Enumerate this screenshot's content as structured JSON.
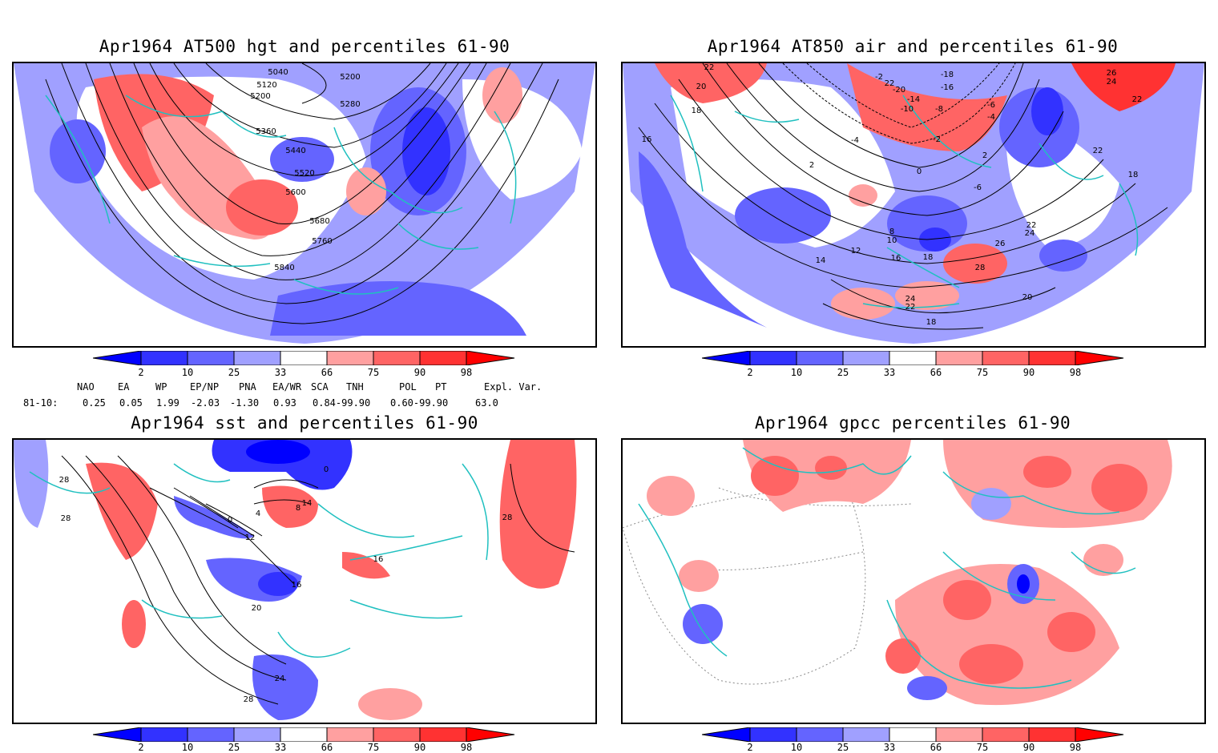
{
  "panels": [
    {
      "title": "Apr1964 AT500 hgt and percentiles 61-90",
      "contour_labels": [
        "5040",
        "5120",
        "5200",
        "5200",
        "5280",
        "5360",
        "5440",
        "5520",
        "5600",
        "5680",
        "5760",
        "5840"
      ]
    },
    {
      "title": "Apr1964 AT850 air and percentiles 61-90",
      "contour_labels": [
        "22",
        "20",
        "18",
        "16",
        "-2",
        "-18",
        "-16",
        "22",
        "-20",
        "-14",
        "-10",
        "-8",
        "-6",
        "-4",
        "-4",
        "-2",
        "0",
        "2",
        "2",
        "-6",
        "26",
        "24",
        "22",
        "22",
        "18",
        "28",
        "26",
        "24",
        "22",
        "20",
        "18",
        "16",
        "14",
        "12",
        "10",
        "8",
        "24",
        "22",
        "18"
      ]
    },
    {
      "title": "Apr1964 sst and percentiles 61-90",
      "contour_labels": [
        "28",
        "28",
        "0",
        "4",
        "8",
        "14",
        "0",
        "12",
        "16",
        "16",
        "20",
        "24",
        "28",
        "28"
      ]
    },
    {
      "title": "Apr1964 gpcc percentiles 61-90",
      "contour_labels": []
    }
  ],
  "colorbar": {
    "labels": [
      "2",
      "10",
      "25",
      "33",
      "66",
      "75",
      "90",
      "98"
    ],
    "colors": {
      "below2": "#0000ff",
      "c2_10": "#3232ff",
      "c10_25": "#6464ff",
      "c25_33": "#a0a0ff",
      "c66_75": "#ffa0a0",
      "c75_90": "#ff6464",
      "c90_98": "#ff3232",
      "above98": "#ff0000"
    }
  },
  "indices": {
    "headers": [
      "NAO",
      "EA",
      "WP",
      "EP/NP",
      "PNA",
      "EA/WR",
      "SCA",
      "TNH",
      "POL",
      "PT",
      "Expl. Var."
    ],
    "row_label": "81-10:",
    "values": [
      "0.25",
      "0.05",
      "1.99",
      "-2.03",
      "-1.30",
      "0.93",
      "0.84-99.90",
      "0.60-99.90",
      "63.0"
    ]
  },
  "colors": {
    "coast": "#20c0c0",
    "contour": "#000000",
    "grid": "#888888"
  }
}
